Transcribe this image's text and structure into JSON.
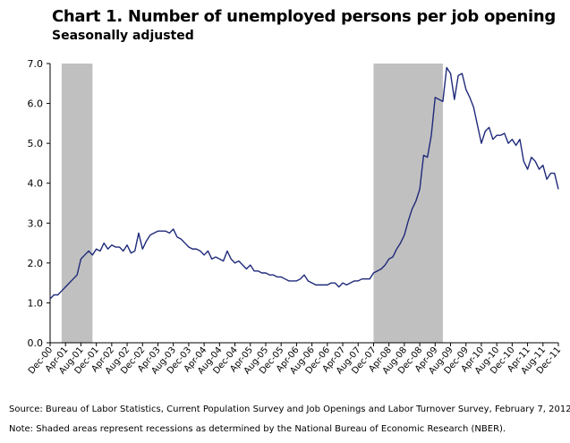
{
  "header": {
    "title": "Chart 1. Number of unemployed persons per job opening",
    "subtitle": "Seasonally adjusted"
  },
  "footer": {
    "source": "Source: Bureau of Labor Statistics, Current Population Survey and Job Openings and Labor Turnover Survey, February 7, 2012.",
    "note": "Note: Shaded areas represent recessions as determined by the National Bureau of Economic Research (NBER)."
  },
  "chart_data": {
    "type": "line",
    "title": "Chart 1. Number of unemployed persons per job opening",
    "subtitle": "Seasonally adjusted",
    "xlabel": "",
    "ylabel": "",
    "ylim": [
      0,
      7
    ],
    "yticks": [
      "0.0",
      "1.0",
      "2.0",
      "3.0",
      "4.0",
      "5.0",
      "6.0",
      "7.0"
    ],
    "xticks": [
      "Dec-00",
      "Apr-01",
      "Aug-01",
      "Dec-01",
      "Apr-02",
      "Aug-02",
      "Dec-02",
      "Apr-03",
      "Aug-03",
      "Dec-03",
      "Apr-04",
      "Aug-04",
      "Dec-04",
      "Apr-05",
      "Aug-05",
      "Dec-05",
      "Apr-06",
      "Aug-06",
      "Dec-06",
      "Apr-07",
      "Aug-07",
      "Dec-07",
      "Apr-08",
      "Aug-08",
      "Dec-08",
      "Apr-09",
      "Aug-09",
      "Dec-09",
      "Apr-10",
      "Aug-10",
      "Dec-10",
      "Apr-11",
      "Aug-11",
      "Dec-11"
    ],
    "grid": false,
    "line_color": "#1f2a7a",
    "recession_color": "#c0c0c0",
    "recessions": [
      [
        "Mar-01",
        "Nov-01"
      ],
      [
        "Dec-07",
        "Jun-09"
      ]
    ],
    "series": [
      {
        "values": [
          1.1,
          1.2,
          1.2,
          1.3,
          1.4,
          1.5,
          1.6,
          1.7,
          2.1,
          2.2,
          2.3,
          2.2,
          2.35,
          2.3,
          2.5,
          2.35,
          2.45,
          2.4,
          2.4,
          2.3,
          2.45,
          2.25,
          2.3,
          2.75,
          2.35,
          2.55,
          2.7,
          2.75,
          2.8,
          2.8,
          2.8,
          2.75,
          2.85,
          2.65,
          2.6,
          2.5,
          2.4,
          2.35,
          2.35,
          2.3,
          2.2,
          2.3,
          2.1,
          2.15,
          2.1,
          2.05,
          2.3,
          2.1,
          2.0,
          2.05,
          1.95,
          1.85,
          1.95,
          1.8,
          1.8,
          1.75,
          1.75,
          1.7,
          1.7,
          1.65,
          1.65,
          1.6,
          1.55,
          1.55,
          1.55,
          1.6,
          1.7,
          1.55,
          1.5,
          1.45,
          1.45,
          1.45,
          1.45,
          1.5,
          1.5,
          1.4,
          1.5,
          1.45,
          1.5,
          1.55,
          1.55,
          1.6,
          1.6,
          1.6,
          1.75,
          1.8,
          1.85,
          1.95,
          2.1,
          2.15,
          2.35,
          2.5,
          2.7,
          3.05,
          3.35,
          3.55,
          3.85,
          4.7,
          4.65,
          5.2,
          6.15,
          6.1,
          6.05,
          6.9,
          6.75,
          6.1,
          6.7,
          6.75,
          6.35,
          6.15,
          5.9,
          5.45,
          5.0,
          5.3,
          5.4,
          5.1,
          5.2,
          5.2,
          5.25,
          5.0,
          5.1,
          4.95,
          5.1,
          4.55,
          4.35,
          4.65,
          4.55,
          4.35,
          4.45,
          4.1,
          4.25,
          4.25,
          3.85
        ]
      }
    ]
  }
}
